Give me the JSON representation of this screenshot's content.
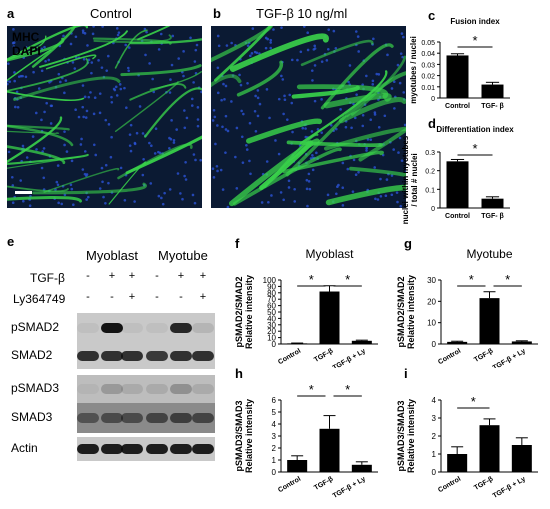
{
  "panels": {
    "a": {
      "letter": "a",
      "title": "Control",
      "legend_mhc": "MHC",
      "legend_dapi": "DAPI"
    },
    "b": {
      "letter": "b",
      "title": "TGF-β  10 ng/ml"
    },
    "c": {
      "letter": "c"
    },
    "d": {
      "letter": "d"
    },
    "e": {
      "letter": "e",
      "group1": "Myoblast",
      "group2": "Myotube",
      "row_tgf": "TGF-β",
      "row_ly": "Ly364749",
      "tgf_signs": [
        "-",
        "+",
        "+",
        "-",
        "+",
        "+"
      ],
      "ly_signs": [
        "-",
        "-",
        "+",
        "-",
        "-",
        "+"
      ],
      "blots": [
        "pSMAD2",
        "SMAD2",
        "pSMAD3",
        "SMAD3",
        "Actin"
      ]
    },
    "f": {
      "letter": "f"
    },
    "g": {
      "letter": "g"
    },
    "h": {
      "letter": "h"
    },
    "i": {
      "letter": "i"
    }
  },
  "colors": {
    "mhc": "#39d24a",
    "dapi": "#2a52d6",
    "micro_bg": "#0b1a33",
    "bar": "#000000"
  },
  "chart_data": [
    {
      "id": "c",
      "type": "bar",
      "title": "Fusion index",
      "ylabel": "myotubes / nuclei",
      "categories": [
        "Control",
        "TGF- β"
      ],
      "values": [
        0.038,
        0.012
      ],
      "errors": [
        0.0015,
        0.002
      ],
      "ylim": [
        0,
        0.05
      ],
      "yticks": [
        "0",
        "0.01",
        "0.02",
        "0.03",
        "0.04",
        "0.05"
      ],
      "significance": [
        {
          "from": 0,
          "to": 1,
          "label": "*"
        }
      ]
    },
    {
      "id": "d",
      "type": "bar",
      "title": "Differentiation index",
      "ylabel": "nuclei within myotubes / total # nuclei",
      "ylabel_lines": [
        "nuclei within myotubes",
        "/ total # nuclei"
      ],
      "categories": [
        "Control",
        "TGF- β"
      ],
      "values": [
        0.25,
        0.05
      ],
      "errors": [
        0.01,
        0.01
      ],
      "ylim": [
        0,
        0.3
      ],
      "yticks": [
        "0",
        "0.1",
        "0.2",
        "0.3"
      ],
      "significance": [
        {
          "from": 0,
          "to": 1,
          "label": "*"
        }
      ]
    },
    {
      "id": "f",
      "type": "bar",
      "title": "Myoblast",
      "ylabel": "pSMAD2/SMAD2 Relative intensity",
      "ylabel_lines": [
        "pSMAD2/SMAD2",
        "Relative intensity"
      ],
      "categories": [
        "Control",
        "TGF-β",
        "TGF-β + Ly"
      ],
      "values": [
        1,
        82,
        5
      ],
      "errors": [
        0.5,
        9,
        1
      ],
      "ylim": [
        0,
        100
      ],
      "yticks": [
        "0",
        "10",
        "20",
        "30",
        "40",
        "50",
        "60",
        "70",
        "80",
        "90",
        "100"
      ],
      "significance": [
        {
          "from": 0,
          "to": 1,
          "label": "*"
        },
        {
          "from": 1,
          "to": 2,
          "label": "*"
        }
      ]
    },
    {
      "id": "g",
      "type": "bar",
      "title": "Myotube",
      "ylabel": "pSMAD2/SMAD2 Relative intensity",
      "ylabel_lines": [
        "pSMAD2/SMAD2",
        "Relative intensity"
      ],
      "categories": [
        "Control",
        "TGF-β",
        "TGF-β + Ly"
      ],
      "values": [
        1,
        21.5,
        1.2
      ],
      "errors": [
        0.3,
        3,
        0.3
      ],
      "ylim": [
        0,
        30
      ],
      "yticks": [
        "0",
        "10",
        "20",
        "30"
      ],
      "significance": [
        {
          "from": 0,
          "to": 1,
          "label": "*"
        },
        {
          "from": 1,
          "to": 2,
          "label": "*"
        }
      ]
    },
    {
      "id": "h",
      "type": "bar",
      "ylabel": "pSMAD3/SMAD3 Relative intensity",
      "ylabel_lines": [
        "pSMAD3/SMAD3",
        "Relative intensity"
      ],
      "categories": [
        "Control",
        "TGF-β",
        "TGF-β + Ly"
      ],
      "values": [
        1.0,
        3.6,
        0.6
      ],
      "errors": [
        0.35,
        1.1,
        0.25
      ],
      "ylim": [
        0,
        6
      ],
      "yticks": [
        "0",
        "1",
        "2",
        "3",
        "4",
        "5",
        "6"
      ],
      "significance": [
        {
          "from": 0,
          "to": 1,
          "label": "*"
        },
        {
          "from": 1,
          "to": 2,
          "label": "*"
        }
      ]
    },
    {
      "id": "i",
      "type": "bar",
      "ylabel": "pSMAD3/SMAD3 Relative intensity",
      "ylabel_lines": [
        "pSMAD3/SMAD3",
        "Relative intensity"
      ],
      "categories": [
        "Control",
        "TGF-β",
        "TGF-β + Ly"
      ],
      "values": [
        1.0,
        2.6,
        1.5
      ],
      "errors": [
        0.4,
        0.35,
        0.4
      ],
      "ylim": [
        0,
        4
      ],
      "yticks": [
        "0",
        "1",
        "2",
        "3",
        "4"
      ],
      "significance": [
        {
          "from": 0,
          "to": 1,
          "label": "*"
        }
      ]
    }
  ]
}
